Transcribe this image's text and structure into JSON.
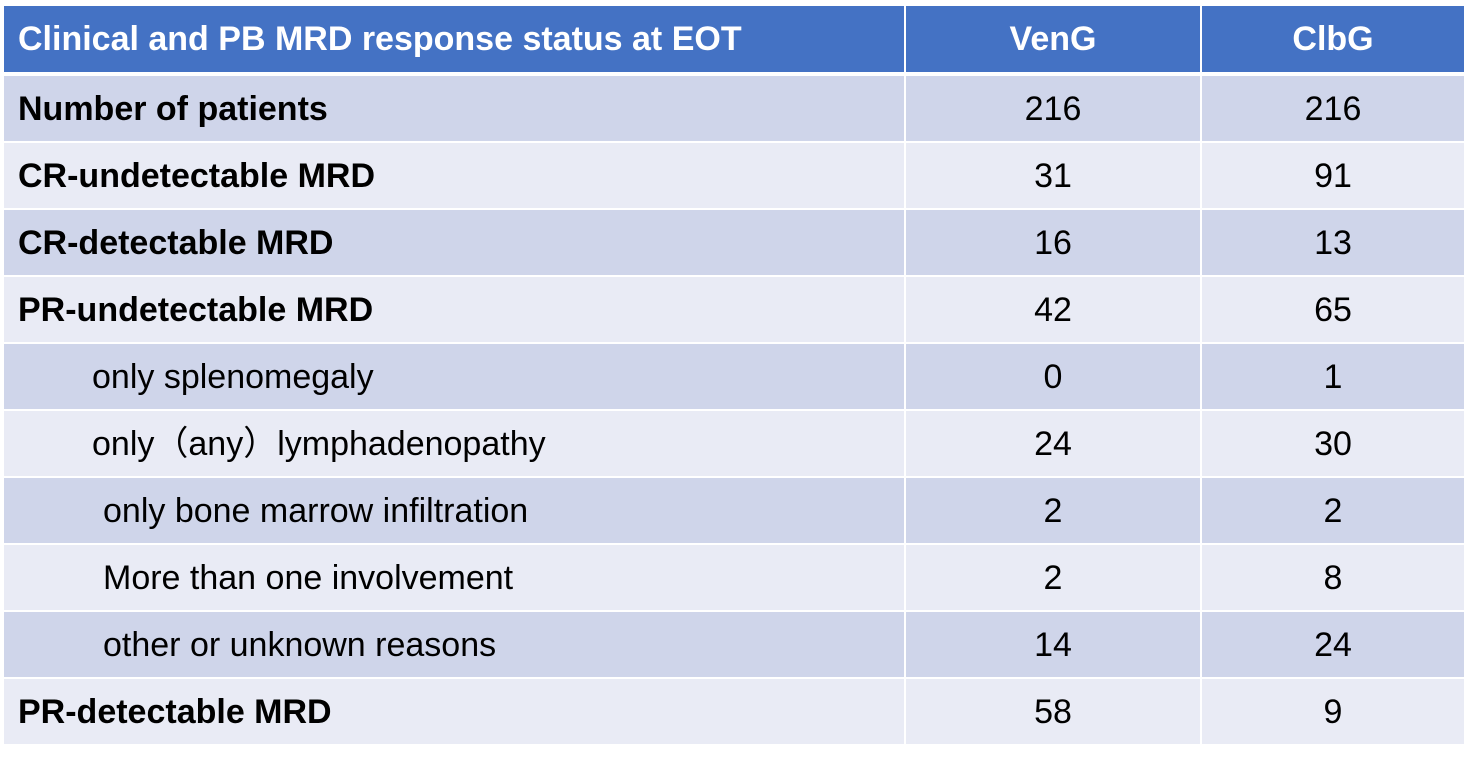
{
  "table": {
    "headers": {
      "label": "Clinical and PB MRD response status at EOT",
      "veng": "VenG",
      "clbg": "ClbG"
    },
    "rows": [
      {
        "label": "Number of patients",
        "veng": "216",
        "clbg": "216",
        "style": "bold"
      },
      {
        "label": "CR-undetectable MRD",
        "veng": "31",
        "clbg": "91",
        "style": "bold"
      },
      {
        "label": "CR-detectable MRD",
        "veng": "16",
        "clbg": "13",
        "style": "bold"
      },
      {
        "label": "PR-undetectable MRD",
        "veng": "42",
        "clbg": "65",
        "style": "bold"
      },
      {
        "label": "only splenomegaly",
        "veng": "0",
        "clbg": "1",
        "style": "indent1"
      },
      {
        "label": "only（any）lymphadenopathy",
        "veng": "24",
        "clbg": "30",
        "style": "indent1"
      },
      {
        "label": "only bone marrow infiltration",
        "veng": "2",
        "clbg": "2",
        "style": "indent2"
      },
      {
        "label": "More than one involvement",
        "veng": "2",
        "clbg": "8",
        "style": "indent2"
      },
      {
        "label": "other or unknown reasons",
        "veng": "14",
        "clbg": "24",
        "style": "indent2"
      },
      {
        "label": "PR-detectable MRD",
        "veng": "58",
        "clbg": "9",
        "style": "bold"
      }
    ]
  }
}
